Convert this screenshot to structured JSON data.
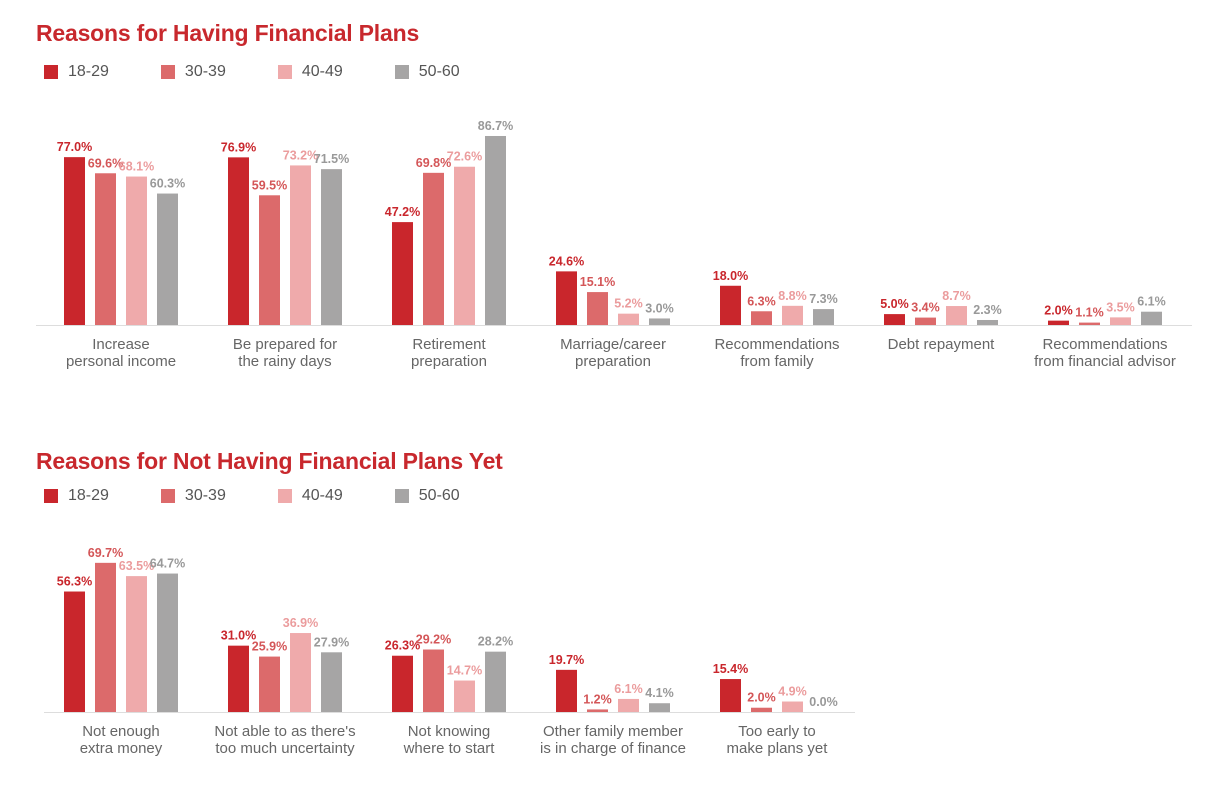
{
  "colors": {
    "title": "#c8282d",
    "axis": "#dddddd",
    "text": "#666666"
  },
  "chart_data": [
    {
      "type": "bar",
      "title": "Reasons for Having Financial Plans",
      "series": [
        {
          "name": "18-29",
          "color": "#c9262c",
          "labelColor": "#c9262c",
          "values": [
            77.0,
            76.9,
            47.2,
            24.6,
            18.0,
            5.0,
            2.0
          ]
        },
        {
          "name": "30-39",
          "color": "#dc6a6b",
          "labelColor": "#d45658",
          "values": [
            69.6,
            59.5,
            69.8,
            15.1,
            6.3,
            3.4,
            1.1
          ]
        },
        {
          "name": "40-49",
          "color": "#efaaab",
          "labelColor": "#eb9c9d",
          "values": [
            68.1,
            73.2,
            72.6,
            5.2,
            8.8,
            8.7,
            3.5
          ]
        },
        {
          "name": "50-60",
          "color": "#a6a5a5",
          "labelColor": "#999999",
          "values": [
            60.3,
            71.5,
            86.7,
            3.0,
            7.3,
            2.3,
            6.1
          ]
        }
      ],
      "categories": [
        [
          "Increase",
          "personal income"
        ],
        [
          "Be prepared for",
          "the rainy days"
        ],
        [
          "Retirement",
          "preparation"
        ],
        [
          "Marriage/career",
          "preparation"
        ],
        [
          "Recommendations",
          "from family"
        ],
        [
          "Debt repayment"
        ],
        [
          "Recommendations",
          "from financial advisor"
        ]
      ],
      "value_labels": [
        [
          "77.0%",
          "76.9%",
          "47.2%",
          "24.6%",
          "18.0%",
          "5.0%",
          "2.0%"
        ],
        [
          "69.6%",
          "59.5%",
          "69.8%",
          "15.1%",
          "6.3%",
          "3.4%",
          "1.1%"
        ],
        [
          "68.1%",
          "73.2%",
          "72.6%",
          "5.2%",
          "8.8%",
          "8.7%",
          "3.5%"
        ],
        [
          "60.3%",
          "71.5%",
          "86.7%",
          "3.0%",
          "7.3%",
          "2.3%",
          "6.1%"
        ]
      ],
      "ylim": [
        0,
        100
      ],
      "grid": false,
      "legend": "top-left"
    },
    {
      "type": "bar",
      "title": "Reasons for Not Having Financial Plans Yet",
      "series": [
        {
          "name": "18-29",
          "color": "#c9262c",
          "labelColor": "#c9262c",
          "values": [
            56.3,
            31.0,
            26.3,
            19.7,
            15.4
          ]
        },
        {
          "name": "30-39",
          "color": "#dc6a6b",
          "labelColor": "#d45658",
          "values": [
            69.7,
            25.9,
            29.2,
            1.2,
            2.0
          ]
        },
        {
          "name": "40-49",
          "color": "#efaaab",
          "labelColor": "#eb9c9d",
          "values": [
            63.5,
            36.9,
            14.7,
            6.1,
            4.9
          ]
        },
        {
          "name": "50-60",
          "color": "#a6a5a5",
          "labelColor": "#999999",
          "values": [
            64.7,
            27.9,
            28.2,
            4.1,
            0.0
          ]
        }
      ],
      "categories": [
        [
          "Not enough",
          "extra money"
        ],
        [
          "Not able to as there's",
          "too much uncertainty"
        ],
        [
          "Not knowing",
          "where to start"
        ],
        [
          "Other family member",
          "is in charge of finance"
        ],
        [
          "Too early to",
          "make plans yet"
        ]
      ],
      "value_labels": [
        [
          "56.3%",
          "31.0%",
          "26.3%",
          "19.7%",
          "15.4%"
        ],
        [
          "69.7%",
          "25.9%",
          "29.2%",
          "1.2%",
          "2.0%"
        ],
        [
          "63.5%",
          "36.9%",
          "14.7%",
          "6.1%",
          "4.9%"
        ],
        [
          "64.7%",
          "27.9%",
          "28.2%",
          "4.1%",
          "0.0%"
        ]
      ],
      "ylim": [
        0,
        100
      ],
      "grid": false,
      "legend": "top-left"
    }
  ]
}
